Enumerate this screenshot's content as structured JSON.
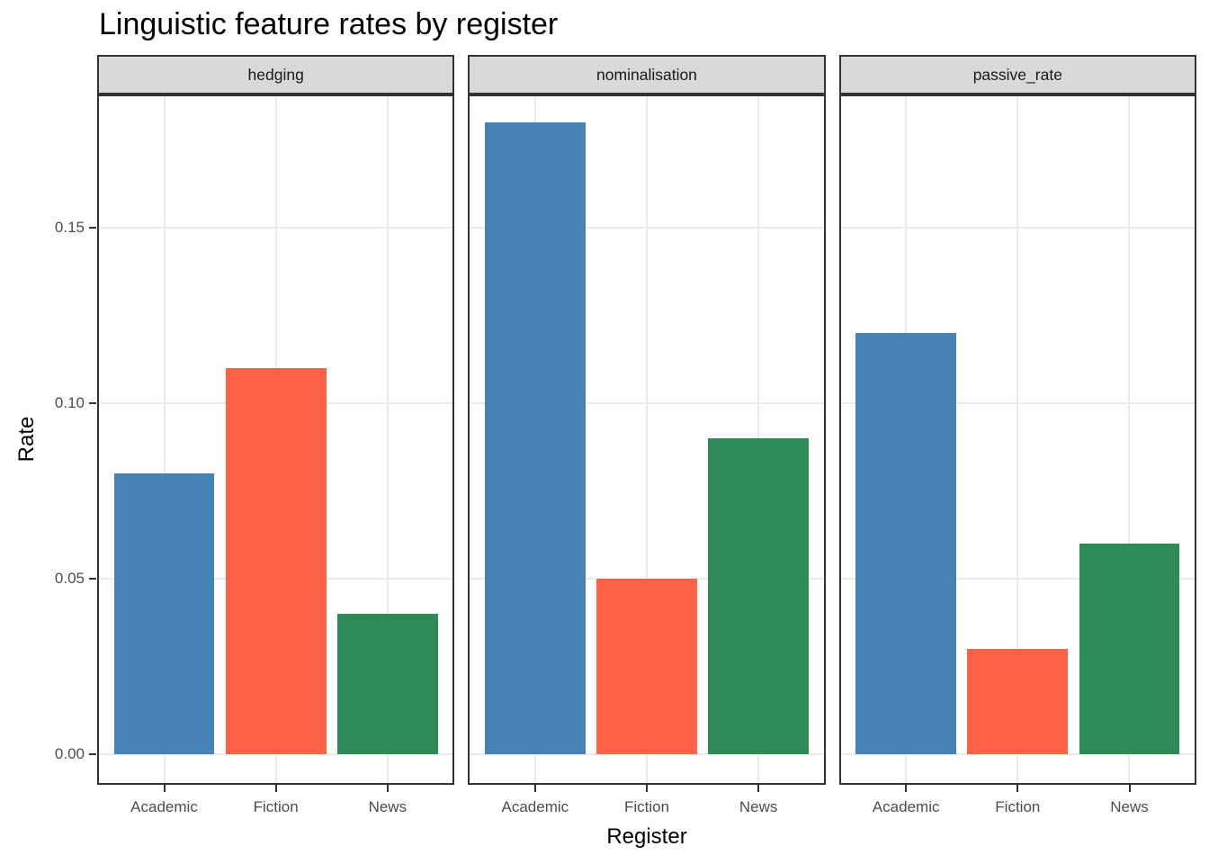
{
  "page": {
    "title": "Linguistic feature rates by register"
  },
  "chart_data": {
    "type": "bar",
    "title": "Linguistic feature rates by register",
    "xlabel": "Register",
    "ylabel": "Rate",
    "facet_layout": "columns",
    "facets": [
      "hedging",
      "nominalisation",
      "passive_rate"
    ],
    "categories": [
      "Academic",
      "Fiction",
      "News"
    ],
    "series": [
      {
        "name": "hedging",
        "values": [
          0.08,
          0.11,
          0.04
        ]
      },
      {
        "name": "nominalisation",
        "values": [
          0.18,
          0.05,
          0.09
        ]
      },
      {
        "name": "passive_rate",
        "values": [
          0.12,
          0.03,
          0.06
        ]
      }
    ],
    "bar_color_by": "category",
    "bar_colors": [
      "#4682B4",
      "#FF6347",
      "#2E8B57"
    ],
    "yticks": [
      0,
      0.05,
      0.1,
      0.15
    ],
    "ytick_labels": [
      "0.00",
      "0.05",
      "0.10",
      "0.15"
    ],
    "ylim": [
      -0.0086,
      0.188
    ],
    "grid": "major",
    "legend": "none"
  },
  "theme": {
    "background": "#FFFFFF",
    "panel_bg": "#FFFFFF",
    "strip_bg": "#D9D9D9",
    "strip_border": "#333333",
    "strip_text_color": "#1A1A1A",
    "panel_border": "#333333",
    "grid_color": "#EBEBEB",
    "tick_color": "#333333",
    "tick_label_color": "#4D4D4D",
    "title_color": "#000000",
    "axis_title_color": "#000000"
  }
}
